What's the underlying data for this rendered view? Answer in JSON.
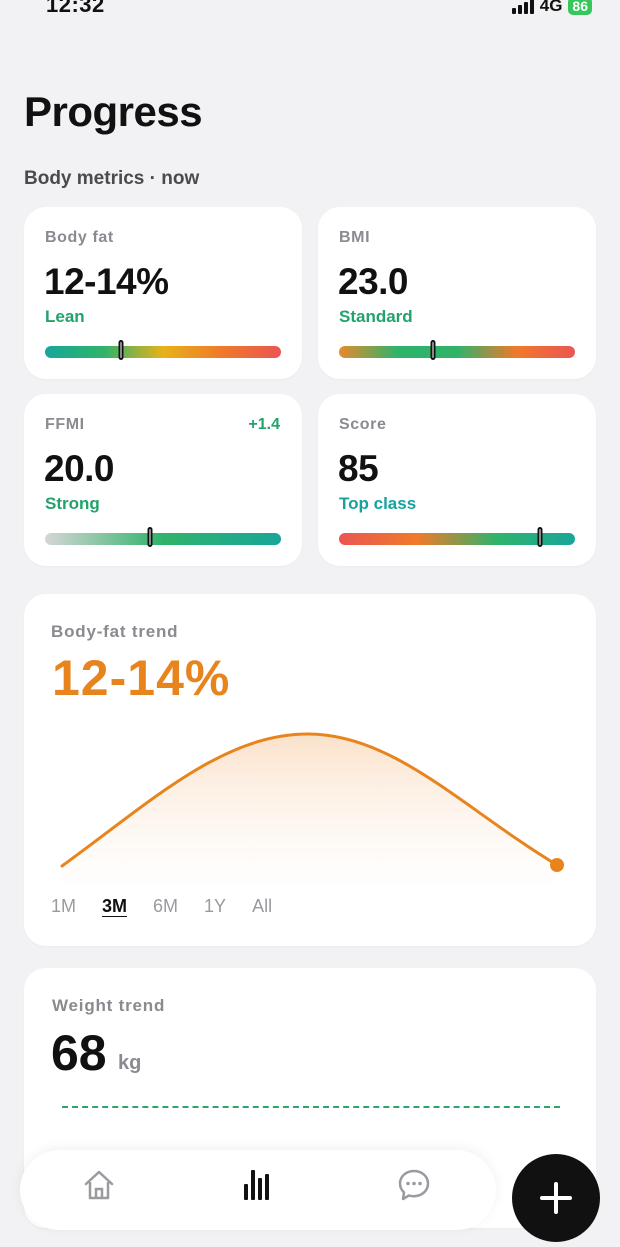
{
  "status_bar": {
    "time": "12:32",
    "network": "4G",
    "battery": "86"
  },
  "header": {
    "title": "Progress",
    "section": "Body metrics · now"
  },
  "metrics": [
    {
      "label": "Body fat",
      "value": "12-14%",
      "status": "Lean",
      "status_color": "#22a36b",
      "delta": "",
      "gauge_position": 0.32,
      "gauge_colors": [
        "#17a69a",
        "#2fb36b",
        "#e8b11a",
        "#ef7a2a",
        "#ec5552"
      ]
    },
    {
      "label": "BMI",
      "value": "23.0",
      "status": "Standard",
      "status_color": "#22a36b",
      "delta": "",
      "gauge_position": 0.4,
      "gauge_colors": [
        "#e58a2c",
        "#2fb36b",
        "#2fb36b",
        "#ef7a2a",
        "#ec5552"
      ]
    },
    {
      "label": "FFMI",
      "value": "20.0",
      "status": "Strong",
      "status_color": "#22a36b",
      "delta": "+1.4",
      "gauge_position": 0.445,
      "gauge_colors": [
        "#d6d6d6",
        "#2fb36b",
        "#17a69a"
      ]
    },
    {
      "label": "Score",
      "value": "85",
      "status": "Top class",
      "status_color": "#14a3a0",
      "delta": "",
      "gauge_position": 0.85,
      "gauge_colors": [
        "#ec5552",
        "#ef7a2a",
        "#2fb36b",
        "#17a69a"
      ]
    }
  ],
  "body_fat_trend": {
    "label": "Body-fat trend",
    "value": "12-14%",
    "accent": "#e8841d",
    "ranges": [
      "1M",
      "3M",
      "6M",
      "1Y",
      "All"
    ],
    "active_range": "3M"
  },
  "weight_trend": {
    "label": "Weight trend",
    "value": "68",
    "unit": "kg",
    "line_color": "#2fa36e"
  },
  "tab_bar": {
    "items": [
      {
        "name": "home-icon"
      },
      {
        "name": "progress-chart-icon"
      },
      {
        "name": "chat-icon"
      }
    ],
    "active": 1
  },
  "fab": {
    "icon": "plus-icon"
  }
}
